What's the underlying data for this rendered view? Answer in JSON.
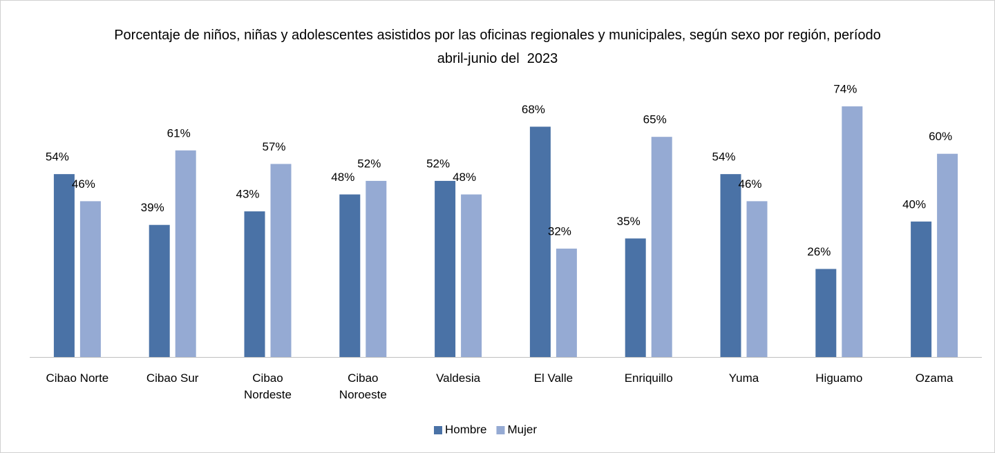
{
  "chart_data": {
    "type": "bar",
    "title": "Porcentaje de niños, niñas y adolescentes asistidos por las oficinas regionales y municipales, según sexo por región, período abril-junio del  2023",
    "categories": [
      "Cibao Norte",
      "Cibao Sur",
      "Cibao Nordeste",
      "Cibao Noroeste",
      "Valdesia",
      "El Valle",
      "Enriquillo",
      "Yuma",
      "Higuamo",
      "Ozama"
    ],
    "series": [
      {
        "name": "Hombre",
        "color": "#4a72a6",
        "values": [
          54,
          39,
          43,
          48,
          52,
          68,
          35,
          54,
          26,
          40
        ],
        "value_labels": [
          "54%",
          "39%",
          "43%",
          "48%",
          "52%",
          "68%",
          "35%",
          "54%",
          "26%",
          "40%"
        ]
      },
      {
        "name": "Mujer",
        "color": "#95aad3",
        "values": [
          46,
          61,
          57,
          52,
          48,
          32,
          65,
          46,
          74,
          60
        ],
        "value_labels": [
          "46%",
          "61%",
          "57%",
          "52%",
          "48%",
          "32%",
          "65%",
          "46%",
          "74%",
          "60%"
        ]
      }
    ],
    "legend": "bottom"
  }
}
